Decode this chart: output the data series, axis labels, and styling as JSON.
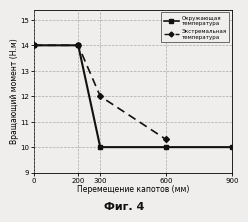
{
  "series1": {
    "label": "Окружающая\nтемпература",
    "x": [
      0,
      200,
      300,
      600,
      900
    ],
    "y": [
      14,
      14,
      10,
      10,
      10
    ],
    "linestyle": "-",
    "marker": "s",
    "color": "#111111"
  },
  "series2": {
    "label": "Экстремальная\nтемпература",
    "x": [
      0,
      200,
      300,
      600
    ],
    "y": [
      14,
      14,
      12,
      10.3
    ],
    "linestyle": "--",
    "marker": "D",
    "color": "#111111"
  },
  "xlim": [
    0,
    900
  ],
  "ylim": [
    9,
    15.4
  ],
  "xticks": [
    0,
    200,
    300,
    600,
    900
  ],
  "yticks": [
    9,
    10,
    11,
    12,
    13,
    14,
    15
  ],
  "xlabel": "Перемещение капотов (мм)",
  "ylabel": "Вращающий момент (Н.м)",
  "fig_label": "Фиг. 4",
  "background_color": "#f0eeec",
  "grid_color": "#999999",
  "legend_label1": "Окружающая\nтемпература",
  "legend_label2": "Экстремальная\nтемпература"
}
